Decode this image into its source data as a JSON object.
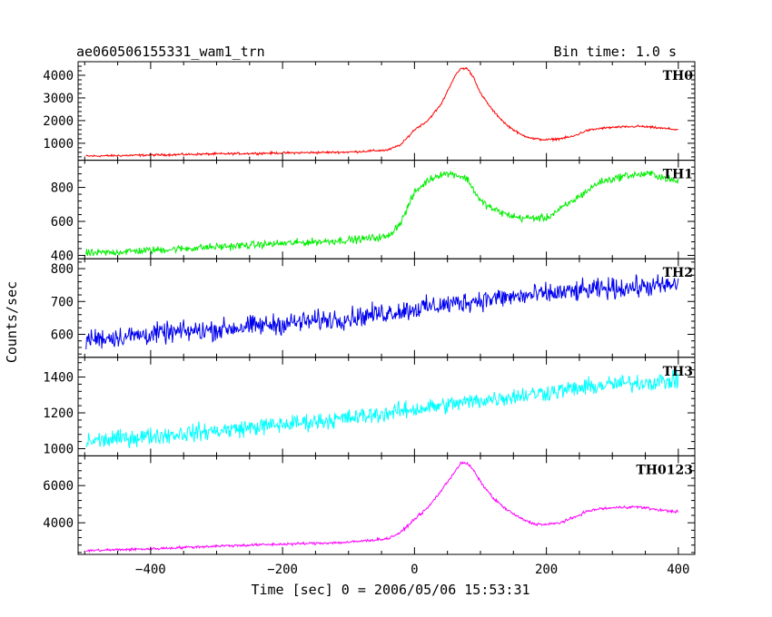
{
  "header": {
    "title": "ae060506155331_wam1_trn",
    "bin_time": "Bin time: 1.0 s"
  },
  "axes": {
    "xlabel": "Time [sec] 0 = 2006/05/06 15:53:31",
    "ylabel": "Counts/sec"
  },
  "chart_data": {
    "type": "line",
    "xlim": [
      -510,
      425
    ],
    "x_ticks": [
      -400,
      -200,
      0,
      200,
      400
    ],
    "x_tick_labels": [
      "−400",
      "−200",
      "0",
      "200",
      "400"
    ],
    "panels": [
      {
        "name": "TH0",
        "color": "#ff0000",
        "ylim": [
          250,
          4600
        ],
        "y_ticks": [
          1000,
          2000,
          3000,
          4000
        ],
        "y_tick_labels": [
          "1000",
          "2000",
          "3000",
          "4000"
        ],
        "noise": 40,
        "x": [
          -500,
          -400,
          -300,
          -200,
          -100,
          -40,
          -20,
          0,
          20,
          40,
          60,
          70,
          80,
          90,
          100,
          120,
          140,
          160,
          180,
          200,
          220,
          240,
          260,
          280,
          300,
          320,
          340,
          360,
          380,
          400
        ],
        "values": [
          430,
          480,
          530,
          570,
          610,
          700,
          950,
          1600,
          2000,
          2700,
          3900,
          4300,
          4300,
          3900,
          3200,
          2400,
          1800,
          1400,
          1200,
          1150,
          1200,
          1300,
          1550,
          1650,
          1700,
          1720,
          1750,
          1700,
          1650,
          1600
        ]
      },
      {
        "name": "TH1",
        "color": "#00ee00",
        "ylim": [
          380,
          960
        ],
        "y_ticks": [
          400,
          600,
          800
        ],
        "y_tick_labels": [
          "400",
          "600",
          "800"
        ],
        "noise": 18,
        "x": [
          -500,
          -400,
          -300,
          -200,
          -100,
          -40,
          -20,
          0,
          20,
          40,
          60,
          80,
          100,
          120,
          140,
          160,
          200,
          240,
          280,
          320,
          360,
          400
        ],
        "values": [
          410,
          430,
          450,
          470,
          490,
          510,
          600,
          770,
          840,
          880,
          880,
          850,
          720,
          670,
          640,
          620,
          620,
          720,
          830,
          870,
          880,
          830
        ]
      },
      {
        "name": "TH2",
        "color": "#0000ee",
        "ylim": [
          530,
          830
        ],
        "y_ticks": [
          600,
          700,
          800
        ],
        "y_tick_labels": [
          "600",
          "700",
          "800"
        ],
        "noise": 26,
        "x": [
          -500,
          -300,
          -100,
          100,
          300,
          400
        ],
        "values": [
          585,
          615,
          650,
          705,
          740,
          750
        ]
      },
      {
        "name": "TH3",
        "color": "#00ffff",
        "ylim": [
          960,
          1510
        ],
        "y_ticks": [
          1000,
          1200,
          1400
        ],
        "y_tick_labels": [
          "1000",
          "1200",
          "1400"
        ],
        "noise": 40,
        "x": [
          -500,
          -300,
          -100,
          100,
          300,
          400
        ],
        "values": [
          1040,
          1100,
          1170,
          1270,
          1360,
          1380
        ]
      },
      {
        "name": "TH0123",
        "color": "#ff00ff",
        "ylim": [
          2300,
          7600
        ],
        "y_ticks": [
          4000,
          6000
        ],
        "y_tick_labels": [
          "4000",
          "6000"
        ],
        "noise": 60,
        "x": [
          -500,
          -400,
          -300,
          -200,
          -100,
          -40,
          -20,
          0,
          20,
          40,
          60,
          70,
          80,
          90,
          100,
          120,
          140,
          160,
          180,
          200,
          220,
          240,
          260,
          280,
          300,
          320,
          340,
          360,
          380,
          400
        ],
        "values": [
          2500,
          2600,
          2750,
          2850,
          2950,
          3150,
          3500,
          4200,
          4800,
          5700,
          6700,
          7200,
          7200,
          6800,
          6200,
          5300,
          4700,
          4250,
          3950,
          3900,
          4000,
          4250,
          4600,
          4750,
          4800,
          4850,
          4850,
          4750,
          4650,
          4600
        ]
      }
    ]
  }
}
